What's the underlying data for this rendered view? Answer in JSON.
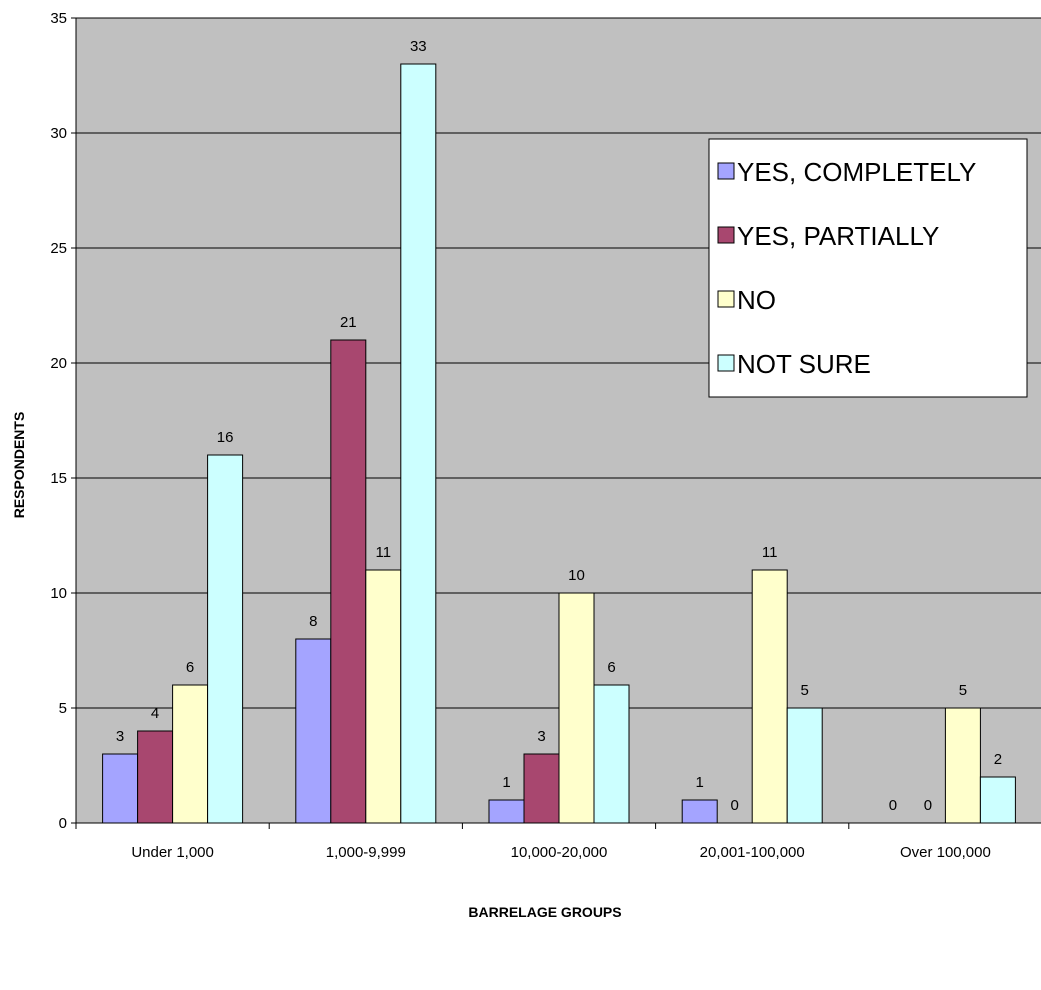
{
  "chart_data": {
    "type": "bar",
    "categories": [
      "Under 1,000",
      "1,000-9,999",
      "10,000-20,000",
      "20,001-100,000",
      "Over 100,000"
    ],
    "series": [
      {
        "name": "YES, COMPLETELY",
        "values": [
          3,
          8,
          1,
          1,
          0
        ],
        "labels": [
          "3",
          "8",
          "1",
          "1",
          "0"
        ],
        "color": "#a4a4ff"
      },
      {
        "name": "YES, PARTIALLY",
        "values": [
          4,
          21,
          3,
          0,
          0
        ],
        "labels": [
          "4",
          "21",
          "3",
          "0",
          "0"
        ],
        "color": "#a8476f"
      },
      {
        "name": "NO",
        "values": [
          6,
          11,
          10,
          11,
          5
        ],
        "labels": [
          "6",
          "11",
          "10",
          "11",
          "5"
        ],
        "color": "#ffffcc"
      },
      {
        "name": "NOT SURE",
        "values": [
          16,
          33,
          6,
          5,
          2
        ],
        "labels": [
          "16",
          "33",
          "6",
          "5",
          "2"
        ],
        "color": "#ccffff"
      }
    ],
    "xlabel": "BARRELAGE GROUPS",
    "ylabel": "RESPONDENTS",
    "ylim": [
      0,
      35
    ],
    "yticks": [
      "0",
      "5",
      "10",
      "15",
      "20",
      "25",
      "30",
      "35"
    ],
    "grid": true,
    "plot_background": "#c0c0c0",
    "legend_position": "right"
  }
}
